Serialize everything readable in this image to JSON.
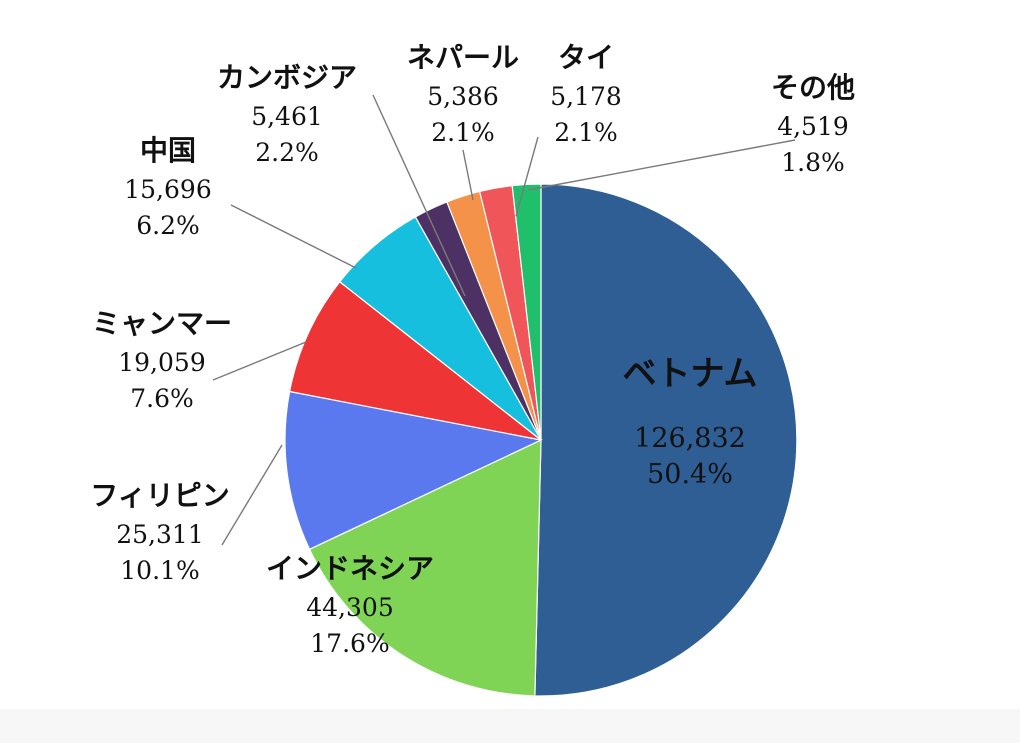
{
  "chart_data": {
    "type": "pie",
    "title": "",
    "slices": [
      {
        "label": "ベトナム",
        "value": 126832,
        "value_text": "126,832",
        "percent": 50.4,
        "percent_text": "50.4%",
        "color": "#2e5e94"
      },
      {
        "label": "インドネシア",
        "value": 44305,
        "value_text": "44,305",
        "percent": 17.6,
        "percent_text": "17.6%",
        "color": "#7fd456"
      },
      {
        "label": "フィリピン",
        "value": 25311,
        "value_text": "25,311",
        "percent": 10.1,
        "percent_text": "10.1%",
        "color": "#5b79ef"
      },
      {
        "label": "ミャンマー",
        "value": 19059,
        "value_text": "19,059",
        "percent": 7.6,
        "percent_text": "7.6%",
        "color": "#ee3434"
      },
      {
        "label": "中国",
        "value": 15696,
        "value_text": "15,696",
        "percent": 6.2,
        "percent_text": "6.2%",
        "color": "#15bfdd"
      },
      {
        "label": "カンボジア",
        "value": 5461,
        "value_text": "5,461",
        "percent": 2.2,
        "percent_text": "2.2%",
        "color": "#4d3164"
      },
      {
        "label": "ネパール",
        "value": 5386,
        "value_text": "5,386",
        "percent": 2.1,
        "percent_text": "2.1%",
        "color": "#f5924a"
      },
      {
        "label": "タイ",
        "value": 5178,
        "value_text": "5,178",
        "percent": 2.1,
        "percent_text": "2.1%",
        "color": "#f0555a"
      },
      {
        "label": "その他",
        "value": 4519,
        "value_text": "4,519",
        "percent": 1.8,
        "percent_text": "1.8%",
        "color": "#1fbf6c"
      }
    ],
    "start": "12 o'clock",
    "direction": "clockwise",
    "legend": "none",
    "data_labels": "category, value, percent"
  }
}
